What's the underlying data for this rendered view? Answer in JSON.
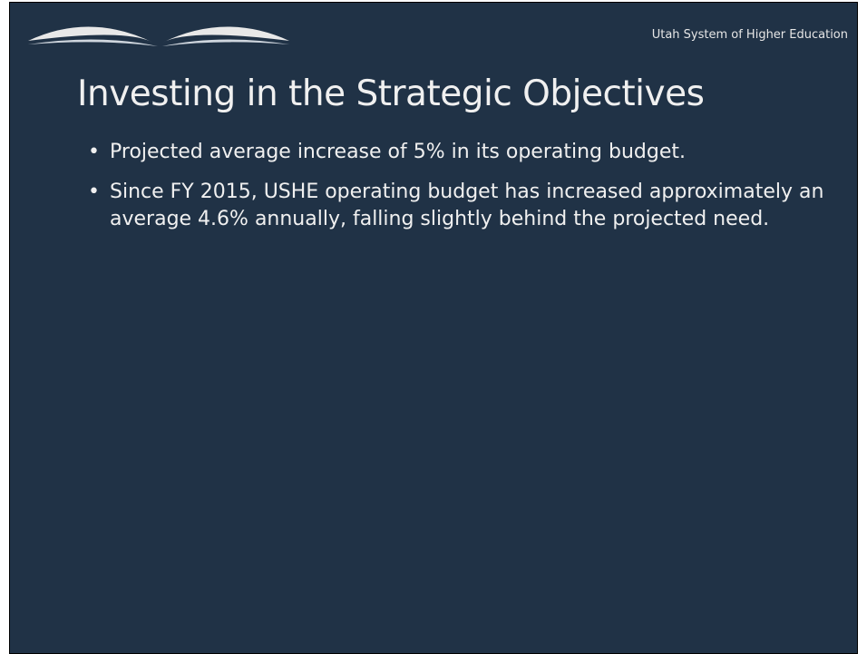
{
  "header": {
    "organization": "Utah System of Higher Education"
  },
  "slide": {
    "title": "Investing in the Strategic Objectives",
    "bullets": [
      "Projected average increase of 5% in its operating budget.",
      "Since FY 2015, USHE operating budget has increased approximately an average 4.6% annually, falling slightly behind the projected need."
    ]
  }
}
